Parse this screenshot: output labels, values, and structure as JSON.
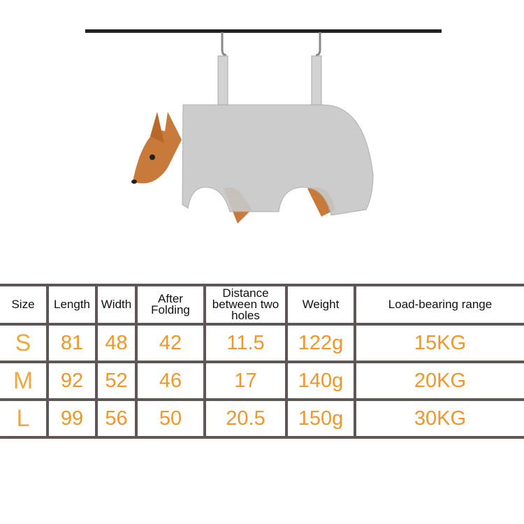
{
  "table": {
    "headers": [
      "Size",
      "Length",
      "Width",
      "After Folding",
      "Distance between two holes",
      "Weight",
      "Load-bearing range"
    ],
    "rows": [
      [
        "S",
        "81",
        "48",
        "42",
        "11.5",
        "122g",
        "15KG"
      ],
      [
        "M",
        "92",
        "52",
        "46",
        "17",
        "140g",
        "20KG"
      ],
      [
        "L",
        "99",
        "56",
        "50",
        "20.5",
        "150g",
        "30KG"
      ]
    ]
  },
  "colors": {
    "value_text": "#f0962a",
    "grid": "#5e5656",
    "hammock": "#c8c8c8"
  }
}
